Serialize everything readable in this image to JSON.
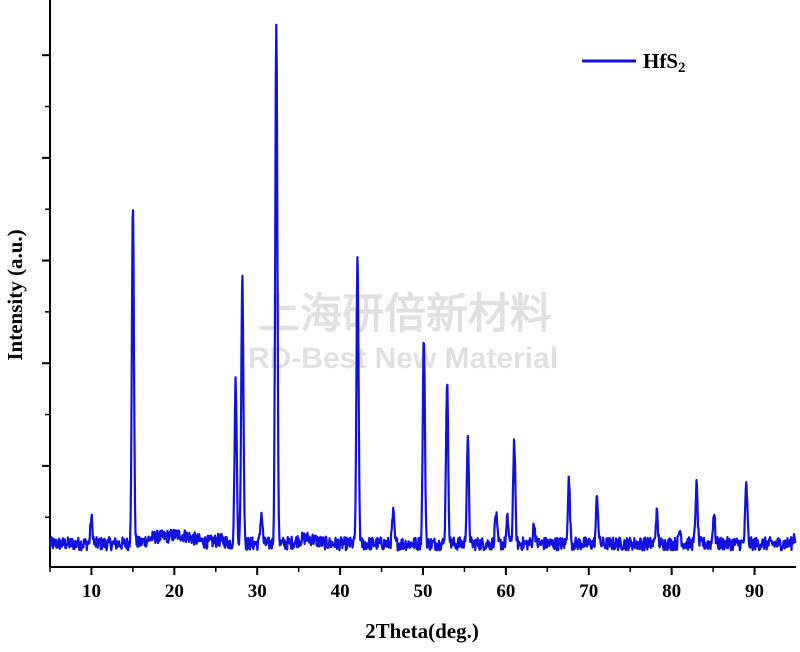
{
  "chart_data": {
    "type": "line",
    "xlabel": "2Theta(deg.)",
    "ylabel": "Intensity (a.u.)",
    "xlim": [
      5,
      95
    ],
    "ylim": [
      0,
      100
    ],
    "x_ticks": [
      "10",
      "20",
      "30",
      "40",
      "50",
      "60",
      "70",
      "80",
      "90"
    ],
    "y_tick_labels_shown": false,
    "legend_position": "top-right",
    "series": [
      {
        "name": "HfS2",
        "color": "#1010e0",
        "peaks": [
          {
            "x": 10.0,
            "y": 6
          },
          {
            "x": 15.0,
            "y": 63
          },
          {
            "x": 27.4,
            "y": 31
          },
          {
            "x": 28.2,
            "y": 50
          },
          {
            "x": 30.5,
            "y": 7
          },
          {
            "x": 32.3,
            "y": 96
          },
          {
            "x": 42.1,
            "y": 54
          },
          {
            "x": 46.4,
            "y": 7
          },
          {
            "x": 50.1,
            "y": 39
          },
          {
            "x": 52.9,
            "y": 31
          },
          {
            "x": 55.4,
            "y": 20
          },
          {
            "x": 58.8,
            "y": 7
          },
          {
            "x": 60.2,
            "y": 6
          },
          {
            "x": 61.0,
            "y": 20
          },
          {
            "x": 63.4,
            "y": 5
          },
          {
            "x": 67.6,
            "y": 13
          },
          {
            "x": 71.0,
            "y": 10
          },
          {
            "x": 78.2,
            "y": 7
          },
          {
            "x": 81.0,
            "y": 4
          },
          {
            "x": 83.0,
            "y": 12
          },
          {
            "x": 85.1,
            "y": 7
          },
          {
            "x": 89.0,
            "y": 12
          },
          {
            "x": 94.8,
            "y": 3
          }
        ],
        "baseline": 1.5
      }
    ]
  },
  "legend": {
    "label": "HfS",
    "subscript": "2"
  },
  "watermark": {
    "cn": "上海研倍新材料",
    "en": "RD-Best New Material"
  }
}
